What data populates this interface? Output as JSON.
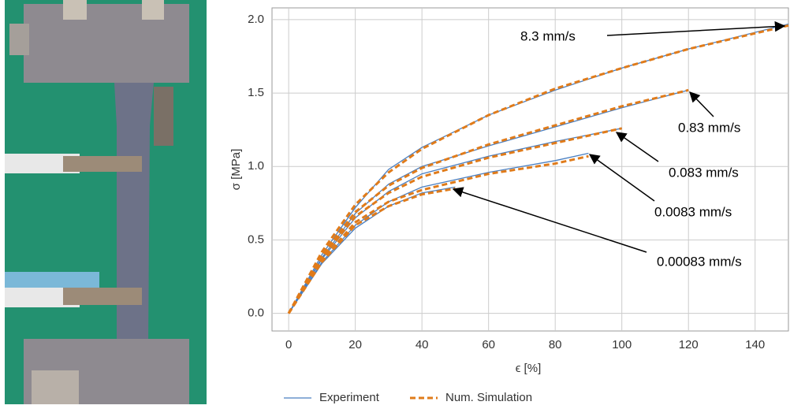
{
  "chart_data": {
    "type": "line",
    "x_label": "ϵ [%]",
    "y_label": "σ [MPa]",
    "xlim": [
      -5,
      150
    ],
    "ylim": [
      -0.12,
      2.08
    ],
    "xticks": [
      0,
      20,
      40,
      60,
      80,
      100,
      120,
      140
    ],
    "yticks": [
      {
        "value": 0,
        "label": "0.0"
      },
      {
        "value": 0.5,
        "label": "0.5"
      },
      {
        "value": 1,
        "label": "1.0"
      },
      {
        "value": 1.5,
        "label": "1.5"
      },
      {
        "value": 2,
        "label": "2.0"
      }
    ],
    "grid": true,
    "series": [
      {
        "name": "Experiment",
        "color": "#4a7fc1",
        "dashed": false,
        "curves": [
          {
            "x": [
              0,
              10,
              20,
              30,
              40,
              60,
              80,
              100,
              120,
              150
            ],
            "values": [
              0,
              0.4,
              0.72,
              0.98,
              1.13,
              1.35,
              1.52,
              1.67,
              1.8,
              1.97
            ]
          },
          {
            "x": [
              0,
              10,
              20,
              30,
              40,
              60,
              80,
              100,
              120
            ],
            "values": [
              0,
              0.38,
              0.68,
              0.88,
              1.0,
              1.14,
              1.27,
              1.4,
              1.52
            ]
          },
          {
            "x": [
              0,
              10,
              20,
              30,
              40,
              60,
              80,
              100
            ],
            "values": [
              0,
              0.37,
              0.65,
              0.83,
              0.95,
              1.07,
              1.17,
              1.26
            ]
          },
          {
            "x": [
              0,
              10,
              20,
              30,
              40,
              60,
              80,
              90
            ],
            "values": [
              0,
              0.35,
              0.6,
              0.76,
              0.86,
              0.96,
              1.04,
              1.09
            ]
          },
          {
            "x": [
              0,
              10,
              20,
              30,
              40,
              50
            ],
            "values": [
              0,
              0.34,
              0.58,
              0.73,
              0.82,
              0.86
            ]
          }
        ]
      },
      {
        "name": "Num. Simulation",
        "color": "#e07b1a",
        "dashed": true,
        "curves": [
          {
            "x": [
              0,
              10,
              20,
              30,
              40,
              60,
              80,
              100,
              120,
              150
            ],
            "values": [
              0,
              0.42,
              0.74,
              0.96,
              1.12,
              1.35,
              1.53,
              1.67,
              1.8,
              1.96
            ]
          },
          {
            "x": [
              0,
              10,
              20,
              30,
              40,
              60,
              80,
              100,
              120
            ],
            "values": [
              0,
              0.4,
              0.69,
              0.87,
              0.99,
              1.15,
              1.28,
              1.41,
              1.52
            ]
          },
          {
            "x": [
              0,
              10,
              20,
              30,
              40,
              60,
              80,
              100
            ],
            "values": [
              0,
              0.38,
              0.66,
              0.82,
              0.93,
              1.06,
              1.16,
              1.26
            ]
          },
          {
            "x": [
              0,
              10,
              20,
              30,
              40,
              60,
              80,
              90
            ],
            "values": [
              0,
              0.36,
              0.62,
              0.76,
              0.84,
              0.95,
              1.02,
              1.07
            ]
          },
          {
            "x": [
              0,
              10,
              20,
              30,
              40,
              50
            ],
            "values": [
              0,
              0.35,
              0.6,
              0.73,
              0.81,
              0.85
            ]
          }
        ]
      }
    ],
    "annotations": [
      "8.3 mm/s",
      "0.83 mm/s",
      "0.083 mm/s",
      "0.0083 mm/s",
      "0.00083 mm/s"
    ]
  }
}
